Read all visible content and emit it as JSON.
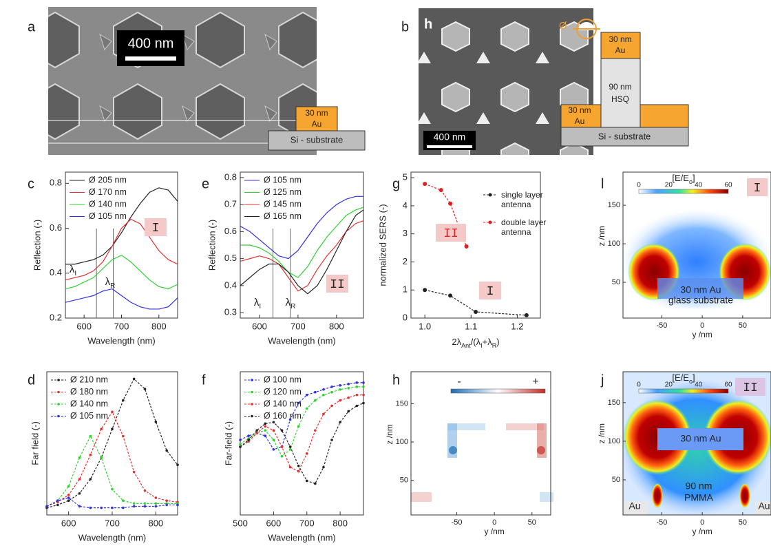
{
  "figure_a": {
    "label": "a",
    "scale_bar": "400 nm",
    "layer": [
      "30 nm",
      "Au"
    ],
    "substrate": "Si - substrate"
  },
  "figure_b": {
    "label": "b",
    "inset_label": "h",
    "diameter_symbol": "Ø",
    "top_layer": [
      "30 nm",
      "Au"
    ],
    "pillar": [
      "90 nm",
      "HSQ"
    ],
    "bottom_layer": [
      "30 nm",
      "Au"
    ],
    "substrate": "Si - substrate",
    "scale_bar": "400 nm"
  },
  "chart_data": [
    {
      "type": "line",
      "label": "c",
      "xlabel": "Wavelength (nm)",
      "ylabel": "Reflection (-)",
      "xlim": [
        550,
        850
      ],
      "ylim": [
        0.2,
        0.85
      ],
      "xticks": [
        600,
        700,
        800
      ],
      "yticks": [
        0.2,
        0.4,
        0.6,
        0.8
      ],
      "x": [
        550,
        575,
        600,
        625,
        650,
        675,
        700,
        725,
        750,
        775,
        800,
        825,
        850
      ],
      "markers": false,
      "series": [
        {
          "name": "Ø 205 nm",
          "color": "#222222",
          "values": [
            0.44,
            0.44,
            0.45,
            0.46,
            0.48,
            0.52,
            0.58,
            0.65,
            0.71,
            0.76,
            0.78,
            0.77,
            0.72
          ]
        },
        {
          "name": "Ø 170 nm",
          "color": "#e03030",
          "values": [
            0.37,
            0.38,
            0.39,
            0.41,
            0.45,
            0.52,
            0.6,
            0.64,
            0.62,
            0.56,
            0.5,
            0.46,
            0.44
          ]
        },
        {
          "name": "Ø 140 nm",
          "color": "#30d030",
          "values": [
            0.33,
            0.34,
            0.36,
            0.38,
            0.42,
            0.46,
            0.48,
            0.45,
            0.41,
            0.37,
            0.34,
            0.33,
            0.35
          ]
        },
        {
          "name": "Ø 105 nm",
          "color": "#3030e0",
          "values": [
            0.27,
            0.28,
            0.29,
            0.3,
            0.32,
            0.33,
            0.3,
            0.27,
            0.25,
            0.24,
            0.24,
            0.25,
            0.29
          ]
        }
      ],
      "vlines": [
        {
          "x": 633,
          "label": "λ",
          "sub": "I"
        },
        {
          "x": 678,
          "label": "λ",
          "sub": "R"
        }
      ],
      "tags": [
        {
          "text": "I",
          "color": "#222222"
        }
      ]
    },
    {
      "type": "line",
      "label": "e",
      "xlabel": "Wavelength (nm)",
      "ylabel": "Reflection (-)",
      "xlim": [
        550,
        870
      ],
      "ylim": [
        0.28,
        0.82
      ],
      "xticks": [
        600,
        700,
        800
      ],
      "yticks": [
        0.3,
        0.4,
        0.5,
        0.6,
        0.7,
        0.8
      ],
      "x": [
        550,
        575,
        600,
        625,
        650,
        675,
        700,
        725,
        750,
        775,
        800,
        825,
        850,
        870
      ],
      "markers": false,
      "series": [
        {
          "name": "Ø 105 nm",
          "color": "#3030e0",
          "values": [
            0.62,
            0.6,
            0.57,
            0.54,
            0.51,
            0.5,
            0.53,
            0.58,
            0.63,
            0.67,
            0.7,
            0.72,
            0.73,
            0.73
          ]
        },
        {
          "name": "Ø 125 nm",
          "color": "#30d030",
          "values": [
            0.55,
            0.55,
            0.54,
            0.52,
            0.49,
            0.45,
            0.43,
            0.47,
            0.53,
            0.58,
            0.62,
            0.66,
            0.68,
            0.69
          ]
        },
        {
          "name": "Ø 145 nm",
          "color": "#e03030",
          "values": [
            0.49,
            0.5,
            0.51,
            0.5,
            0.48,
            0.43,
            0.38,
            0.4,
            0.46,
            0.51,
            0.55,
            0.6,
            0.63,
            0.64
          ]
        },
        {
          "name": "Ø 165 nm",
          "color": "#222222",
          "values": [
            0.4,
            0.43,
            0.46,
            0.48,
            0.48,
            0.45,
            0.4,
            0.37,
            0.4,
            0.46,
            0.53,
            0.6,
            0.66,
            0.68
          ]
        }
      ],
      "vlines": [
        {
          "x": 635,
          "label": "λ",
          "sub": "I"
        },
        {
          "x": 680,
          "label": "λ",
          "sub": "R"
        }
      ],
      "tags": [
        {
          "text": "II",
          "color": "#222222"
        }
      ]
    },
    {
      "type": "line",
      "label": "g",
      "xlabel_parts": [
        "2λ",
        "Ant",
        "/(λ",
        "I",
        "+λ",
        "R",
        ")"
      ],
      "ylabel": "normalized SERS (-)",
      "xlim": [
        0.97,
        1.25
      ],
      "ylim": [
        0,
        5.2
      ],
      "xticks": [
        {
          "value": 1,
          "label": "1.0"
        },
        1.1,
        1.2
      ],
      "yticks": [
        0,
        1,
        2,
        3,
        4,
        5
      ],
      "markers": true,
      "series": [
        {
          "name": "single layer antenna",
          "color": "#222222",
          "x": [
            1.0,
            1.055,
            1.11,
            1.22
          ],
          "values": [
            1.0,
            0.8,
            0.22,
            0.1
          ]
        },
        {
          "name": "double layer antenna",
          "color": "#e02020",
          "x": [
            1.0,
            1.035,
            1.055,
            1.09
          ],
          "values": [
            4.78,
            4.56,
            4.08,
            2.55
          ]
        }
      ],
      "tags": [
        {
          "text": "II",
          "color": "#e02020"
        },
        {
          "text": "I",
          "color": "#222222"
        }
      ]
    },
    {
      "type": "line",
      "label": "d",
      "xlabel": "Wavelength (nm)",
      "ylabel": "Far field (-)",
      "xlim": [
        550,
        850
      ],
      "ylim": [
        0,
        1
      ],
      "xticks": [
        600,
        700,
        800
      ],
      "markers": true,
      "x": [
        550,
        575,
        600,
        625,
        650,
        675,
        700,
        725,
        750,
        775,
        800,
        825,
        850
      ],
      "series": [
        {
          "name": "Ø 210 nm",
          "color": "#222222",
          "values": [
            0.05,
            0.07,
            0.1,
            0.15,
            0.25,
            0.4,
            0.6,
            0.8,
            0.95,
            0.88,
            0.65,
            0.45,
            0.35
          ]
        },
        {
          "name": "Ø 180 nm",
          "color": "#e03030",
          "values": [
            0.06,
            0.09,
            0.14,
            0.25,
            0.42,
            0.6,
            0.72,
            0.55,
            0.3,
            0.17,
            0.12,
            0.1,
            0.09
          ]
        },
        {
          "name": "Ø 140 nm",
          "color": "#30d030",
          "values": [
            0.06,
            0.1,
            0.2,
            0.4,
            0.55,
            0.4,
            0.18,
            0.1,
            0.08,
            0.08,
            0.08,
            0.08,
            0.08
          ]
        },
        {
          "name": "Ø 105 nm",
          "color": "#3030e0",
          "values": [
            0.06,
            0.1,
            0.12,
            0.06,
            0.05,
            0.05,
            0.05,
            0.05,
            0.06,
            0.06,
            0.06,
            0.07,
            0.07
          ]
        }
      ]
    },
    {
      "type": "line",
      "label": "f",
      "xlabel": "Wavelength (nm)",
      "ylabel": "Far-field (-)",
      "xlim": [
        500,
        870
      ],
      "ylim": [
        0,
        1.05
      ],
      "xticks": [
        500,
        600,
        700,
        800
      ],
      "markers": true,
      "x": [
        500,
        525,
        550,
        575,
        600,
        625,
        650,
        675,
        700,
        725,
        750,
        775,
        800,
        825,
        850,
        870
      ],
      "series": [
        {
          "name": "Ø 100 nm",
          "color": "#3030e0",
          "values": [
            0.55,
            0.58,
            0.6,
            0.58,
            0.48,
            0.5,
            0.7,
            0.82,
            0.88,
            0.9,
            0.92,
            0.94,
            0.95,
            0.96,
            0.97,
            0.97
          ]
        },
        {
          "name": "Ø 120 nm",
          "color": "#30d030",
          "values": [
            0.52,
            0.56,
            0.6,
            0.62,
            0.55,
            0.43,
            0.48,
            0.65,
            0.78,
            0.84,
            0.88,
            0.9,
            0.92,
            0.93,
            0.94,
            0.94
          ]
        },
        {
          "name": "Ø 140 nm",
          "color": "#e03030",
          "values": [
            0.5,
            0.54,
            0.6,
            0.65,
            0.62,
            0.5,
            0.35,
            0.32,
            0.45,
            0.62,
            0.74,
            0.8,
            0.84,
            0.86,
            0.88,
            0.88
          ]
        },
        {
          "name": "Ø 160 nm",
          "color": "#222222",
          "values": [
            0.5,
            0.55,
            0.62,
            0.67,
            0.68,
            0.62,
            0.5,
            0.36,
            0.25,
            0.23,
            0.35,
            0.55,
            0.68,
            0.76,
            0.8,
            0.82
          ]
        }
      ]
    }
  ],
  "field_maps": [
    {
      "label": "h",
      "xlim": [
        -111,
        75
      ],
      "ylim": [
        4.5,
        192
      ],
      "xticks": [
        -50,
        0,
        50
      ],
      "yticks": [
        50,
        100,
        150
      ],
      "xlabel": "y /nm",
      "ylabel": "z /nm",
      "colorbar_labels": [
        "-",
        "+"
      ]
    },
    {
      "label": "l",
      "xlim": [
        -98,
        85
      ],
      "ylim": [
        3.6,
        193
      ],
      "xticks": [
        -50,
        0,
        50
      ],
      "yticks": [
        50,
        100,
        150
      ],
      "xlabel": "y /nm",
      "ylabel": "z /nm",
      "colorbar_label_parts": [
        "[E/E",
        "o",
        "]"
      ],
      "colorbar_ticks": [
        0,
        20,
        40,
        60
      ],
      "tag": "I",
      "texts": [
        "30 nm Au",
        "glass substrate"
      ]
    },
    {
      "label": "j",
      "xlim": [
        -98,
        85
      ],
      "ylim": [
        4.5,
        190
      ],
      "xticks": [
        -50,
        0,
        50
      ],
      "yticks": [
        50,
        100,
        150
      ],
      "xlabel": "y /nm",
      "ylabel": "z /nm",
      "colorbar_label_parts": [
        "[E/E",
        "o",
        "]"
      ],
      "colorbar_ticks": [
        0,
        20,
        40,
        60
      ],
      "tag": "II",
      "texts": [
        "30 nm Au",
        "90 nm",
        "PMMA",
        "Au",
        "Au"
      ]
    }
  ]
}
